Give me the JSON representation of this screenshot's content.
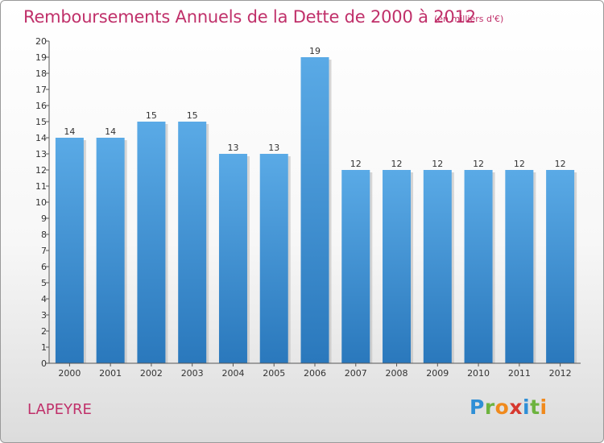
{
  "header": {
    "title": "Remboursements Annuels de la Dette de 2000 à 2012",
    "subtitle": "(en milliers d'€)"
  },
  "footer": {
    "commune": "LAPEYRE",
    "logo_text": "Proxiti"
  },
  "colors": {
    "title": "#c0306a",
    "bar_light": "#5aaae6",
    "bar_dark": "#2a78bc"
  },
  "chart_data": {
    "type": "bar",
    "title": "Remboursements Annuels de la Dette de 2000 à 2012",
    "subtitle": "(en milliers d'€)",
    "xlabel": "",
    "ylabel": "",
    "categories": [
      "2000",
      "2001",
      "2002",
      "2003",
      "2004",
      "2005",
      "2006",
      "2007",
      "2008",
      "2009",
      "2010",
      "2011",
      "2012"
    ],
    "values": [
      14,
      14,
      15,
      15,
      13,
      13,
      19,
      12,
      12,
      12,
      12,
      12,
      12
    ],
    "ylim": [
      0,
      20
    ],
    "yticks": [
      0,
      1,
      2,
      3,
      4,
      5,
      6,
      7,
      8,
      9,
      10,
      11,
      12,
      13,
      14,
      15,
      16,
      17,
      18,
      19,
      20
    ],
    "grid": false,
    "legend": "none",
    "data_labels": true
  }
}
